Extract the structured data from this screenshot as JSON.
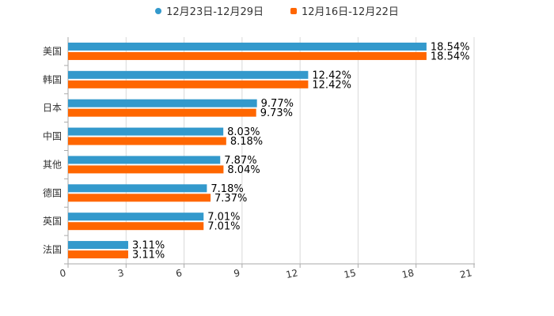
{
  "colors": {
    "series_a": "#3399cc",
    "series_b": "#ff6600",
    "grid": "#d9d9d9",
    "axis": "#aaaaaa",
    "text": "#333333"
  },
  "legend": {
    "series_a_icon": "circle-marker-icon",
    "series_b_icon": "square-marker-icon"
  },
  "chart_data": {
    "type": "bar",
    "orientation": "horizontal",
    "title": "",
    "xlabel": "",
    "ylabel": "",
    "categories": [
      "美国",
      "韩国",
      "日本",
      "中国",
      "其他",
      "德国",
      "英国",
      "法国"
    ],
    "series": [
      {
        "name": "12月23日-12月29日",
        "values": [
          18.54,
          12.42,
          9.77,
          8.03,
          7.87,
          7.18,
          7.01,
          3.11
        ],
        "labels": [
          "18.54%",
          "12.42%",
          "9.77%",
          "8.03%",
          "7.87%",
          "7.18%",
          "7.01%",
          "3.11%"
        ]
      },
      {
        "name": "12月16日-12月22日",
        "values": [
          18.54,
          12.42,
          9.73,
          8.18,
          8.04,
          7.37,
          7.01,
          3.11
        ],
        "labels": [
          "18.54%",
          "12.42%",
          "9.73%",
          "8.18%",
          "8.04%",
          "7.37%",
          "7.01%",
          "3.11%"
        ]
      }
    ],
    "xlim": [
      0,
      21
    ],
    "xticks": [
      0,
      3,
      6,
      9,
      12,
      15,
      18,
      21
    ],
    "xtick_labels": [
      "0",
      "3",
      "6",
      "9",
      "12",
      "15",
      "18",
      "21"
    ],
    "grid": true,
    "legend_position": "top-center"
  }
}
